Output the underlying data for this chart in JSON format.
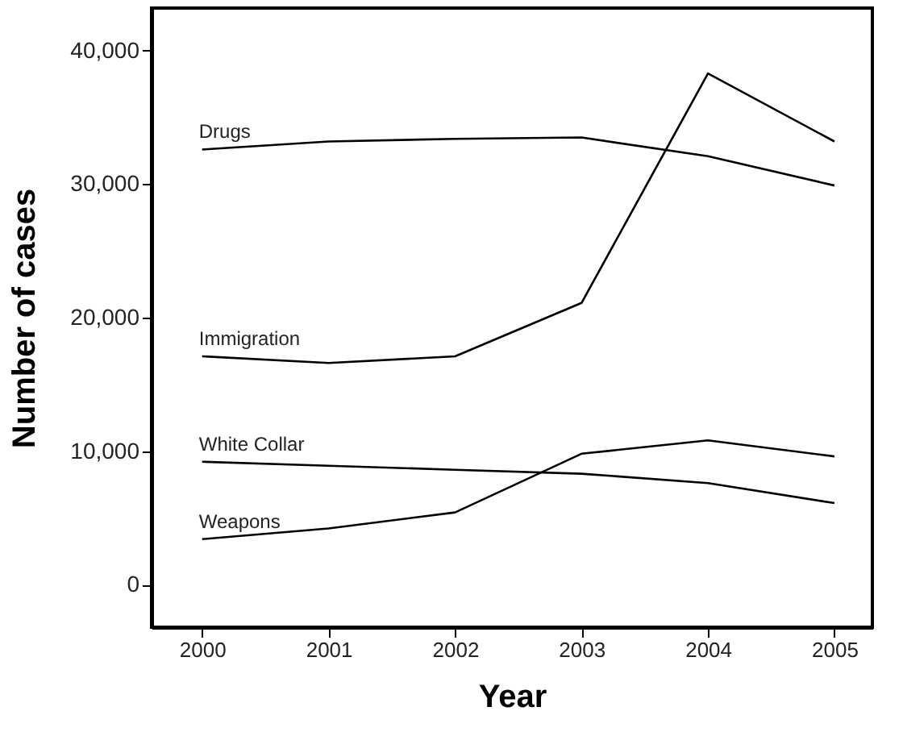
{
  "chart_data": {
    "type": "line",
    "xlabel": "Year",
    "ylabel": "Number of cases",
    "x": [
      2000,
      2001,
      2002,
      2003,
      2004,
      2005
    ],
    "series": [
      {
        "name": "Drugs",
        "color": "#000000",
        "values": [
          32600,
          33200,
          33400,
          33500,
          32100,
          29900
        ]
      },
      {
        "name": "Immigration",
        "color": "#000000",
        "values": [
          17100,
          16600,
          17100,
          21100,
          38300,
          33200
        ]
      },
      {
        "name": "White Collar",
        "color": "#000000",
        "values": [
          9200,
          8900,
          8600,
          8300,
          7600,
          6100
        ]
      },
      {
        "name": "Weapons",
        "color": "#000000",
        "values": [
          3400,
          4200,
          5400,
          9800,
          10800,
          9600
        ]
      }
    ],
    "xlim": [
      1999.6,
      2005.3
    ],
    "xticks": [
      2000,
      2001,
      2002,
      2003,
      2004,
      2005
    ],
    "ylim": [
      -3200,
      43200
    ],
    "yticks": [
      0,
      {
        "value": 10000,
        "label": "10,000"
      },
      {
        "value": 20000,
        "label": "20,000"
      },
      {
        "value": 30000,
        "label": "30,000"
      },
      {
        "value": 40000,
        "label": "40,000"
      }
    ],
    "grid": false,
    "legend": false,
    "marker": "none",
    "line_style": "solid"
  }
}
